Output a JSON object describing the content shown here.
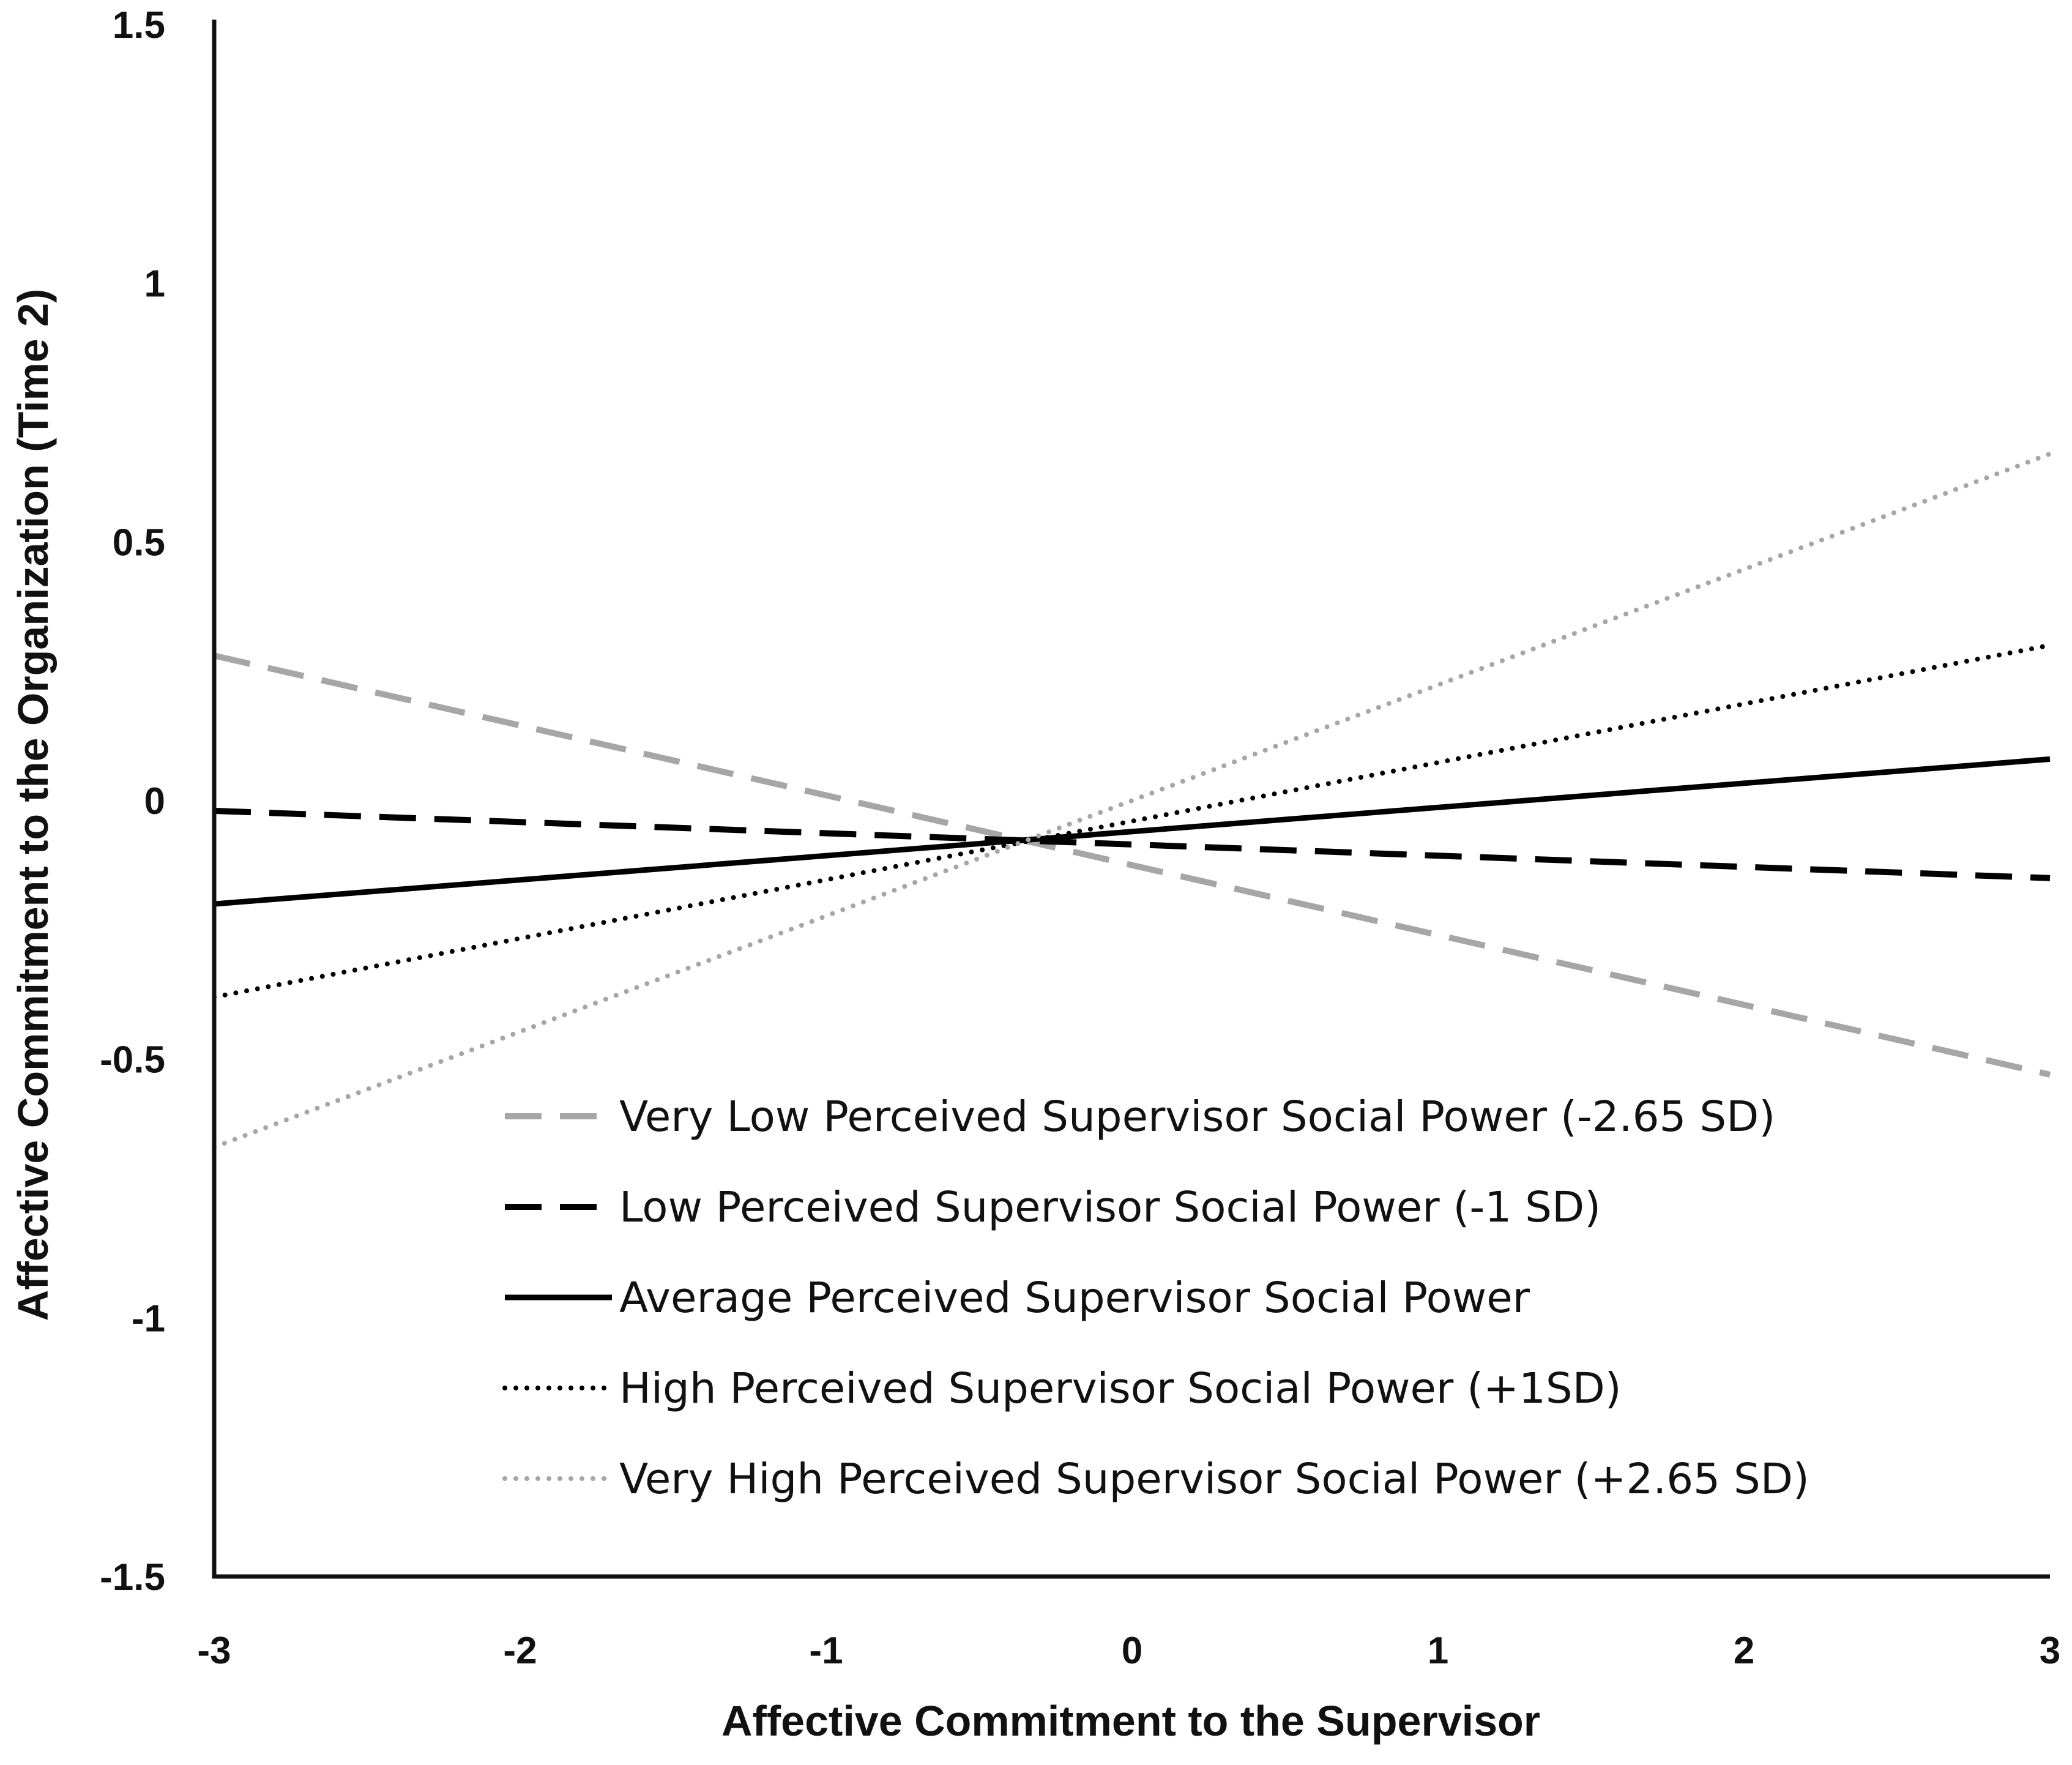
{
  "chart_data": {
    "type": "line",
    "title": "",
    "xlabel": "Affective Commitment to the Supervisor",
    "ylabel": "Affective Commitment to the Organization (Time 2)",
    "xlim": [
      -3,
      3
    ],
    "ylim": [
      -1.5,
      1.5
    ],
    "x_ticks": [
      -3,
      -2,
      -1,
      0,
      1,
      2,
      3
    ],
    "x_tick_labels": [
      "-3",
      "-2",
      "-1",
      "0",
      "1",
      "2",
      "3"
    ],
    "y_ticks": [
      1.5,
      1,
      0.5,
      0,
      -0.5,
      -1,
      -1.5
    ],
    "y_tick_labels": [
      "1.5",
      "1",
      "0.5",
      "0",
      "-0.5",
      "-1",
      "-1.5"
    ],
    "grid": false,
    "legend_position": "bottom-center",
    "x": [
      -3,
      3
    ],
    "series": [
      {
        "name": "Very Low Perceived Supervisor Social Power (-2.65 SD)",
        "values": [
          0.28,
          -0.53
        ],
        "color": "#a6a6a6",
        "style": "dashed"
      },
      {
        "name": "Low Perceived Supervisor Social Power (-1 SD)",
        "values": [
          -0.02,
          -0.15
        ],
        "color": "#000000",
        "style": "dashed"
      },
      {
        "name": "Average Perceived Supervisor Social Power",
        "values": [
          -0.2,
          0.08
        ],
        "color": "#000000",
        "style": "solid"
      },
      {
        "name": "High Perceived Supervisor Social Power (+1SD)",
        "values": [
          -0.38,
          0.3
        ],
        "color": "#000000",
        "style": "dotted"
      },
      {
        "name": "Very High Perceived Supervisor Social Power (+2.65 SD)",
        "values": [
          -0.67,
          0.67
        ],
        "color": "#a6a6a6",
        "style": "dotted"
      }
    ]
  }
}
